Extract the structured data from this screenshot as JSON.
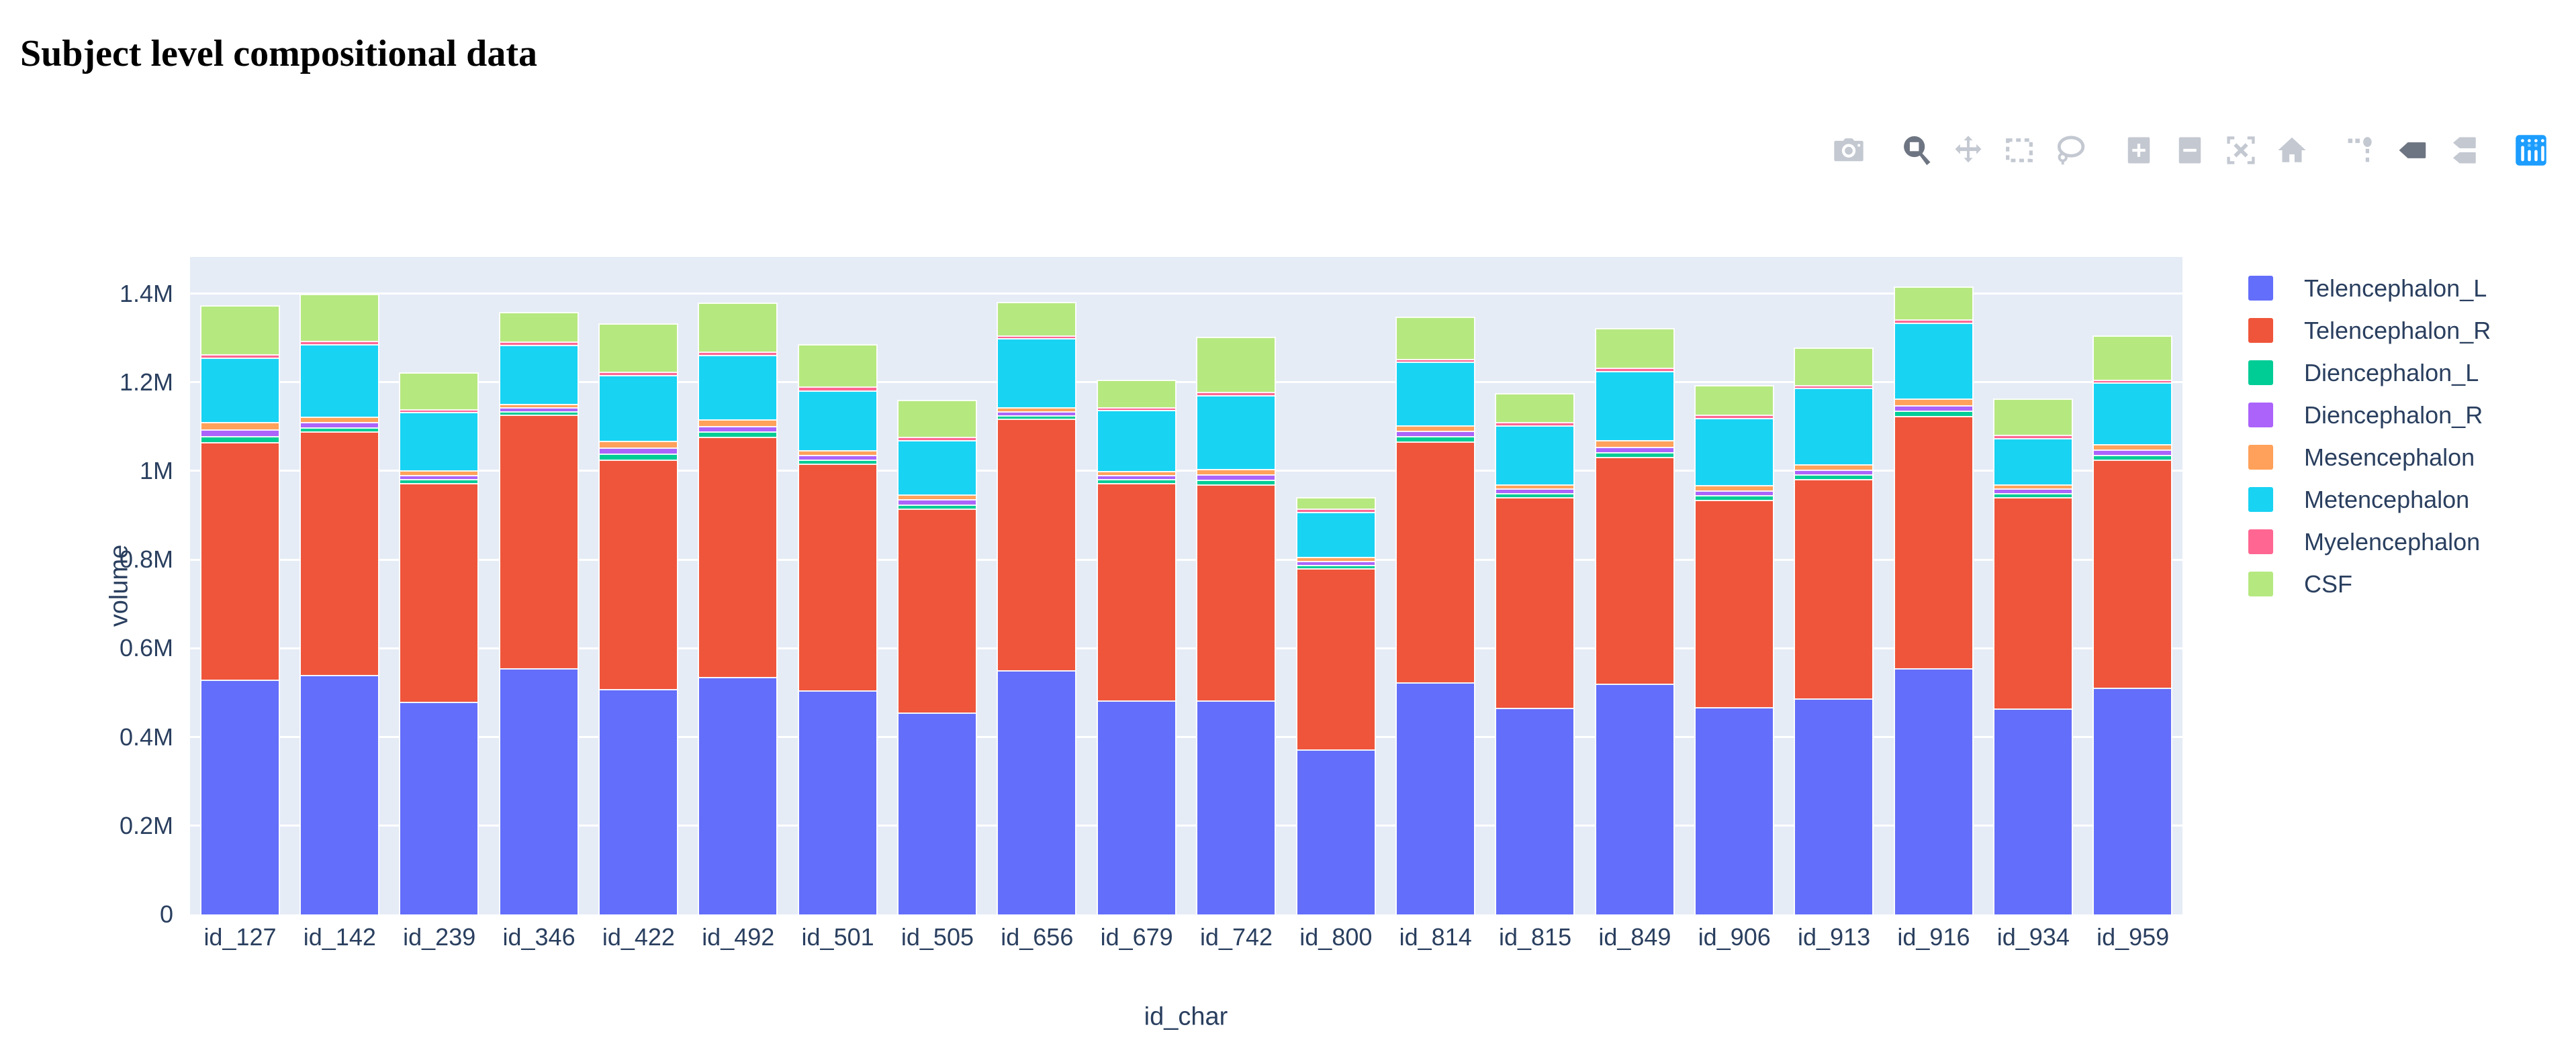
{
  "page": {
    "title": "Subject level compositional data"
  },
  "modebar": {
    "active_color": "#6e7582",
    "inactive_color": "#c3c8d1",
    "logo_color": "#1c9dff",
    "group_starts": [
      1,
      5,
      9,
      12
    ],
    "buttons": [
      {
        "icon": "camera",
        "name": "download-png",
        "active": false
      },
      {
        "icon": "zoom",
        "name": "zoom",
        "active": true
      },
      {
        "icon": "pan",
        "name": "pan",
        "active": false
      },
      {
        "icon": "box-select",
        "name": "box-select",
        "active": false
      },
      {
        "icon": "lasso",
        "name": "lasso-select",
        "active": false
      },
      {
        "icon": "zoom-in",
        "name": "zoom-in",
        "active": false
      },
      {
        "icon": "zoom-out",
        "name": "zoom-out",
        "active": false
      },
      {
        "icon": "autoscale",
        "name": "autoscale",
        "active": false
      },
      {
        "icon": "home",
        "name": "reset-axes",
        "active": false
      },
      {
        "icon": "spikelines",
        "name": "toggle-spikelines",
        "active": false
      },
      {
        "icon": "hover-closest",
        "name": "hover-closest",
        "active": true
      },
      {
        "icon": "hover-compare",
        "name": "hover-compare",
        "active": false
      },
      {
        "icon": "plotly-logo",
        "name": "plotly-logo",
        "active": false
      }
    ]
  },
  "chart_data": {
    "type": "bar",
    "stacked": true,
    "xlabel": "id_char",
    "ylabel": "volume",
    "plot_bgcolor": "#E5ECF6",
    "grid_color": "#ffffff",
    "font_color": "#2a3f5f",
    "grid": true,
    "legend_position": "right",
    "ylim": [
      0,
      1482500
    ],
    "yticks": [
      {
        "value": 0,
        "label": "0"
      },
      {
        "value": 200000,
        "label": "0.2M"
      },
      {
        "value": 400000,
        "label": "0.4M"
      },
      {
        "value": 600000,
        "label": "0.6M"
      },
      {
        "value": 800000,
        "label": "0.8M"
      },
      {
        "value": 1000000,
        "label": "1M"
      },
      {
        "value": 1200000,
        "label": "1.2M"
      },
      {
        "value": 1400000,
        "label": "1.4M"
      }
    ],
    "categories": [
      "id_127",
      "id_142",
      "id_239",
      "id_346",
      "id_422",
      "id_492",
      "id_501",
      "id_505",
      "id_656",
      "id_679",
      "id_742",
      "id_800",
      "id_814",
      "id_815",
      "id_849",
      "id_906",
      "id_913",
      "id_916",
      "id_934",
      "id_959"
    ],
    "series": [
      {
        "name": "Telencephalon_L",
        "color": "#636EFA",
        "values": [
          530000,
          540000,
          480000,
          555000,
          508000,
          535000,
          505000,
          455000,
          550000,
          482000,
          483000,
          372000,
          523000,
          466000,
          520000,
          467000,
          487000,
          555000,
          465000,
          512000
        ]
      },
      {
        "name": "Telencephalon_R",
        "color": "#EF553B",
        "values": [
          535000,
          549000,
          493000,
          572000,
          518000,
          542000,
          512000,
          460000,
          568000,
          491000,
          487000,
          408000,
          544000,
          475000,
          511000,
          468000,
          495000,
          569000,
          476000,
          514000
        ]
      },
      {
        "name": "Diencephalon_L",
        "color": "#00CC96",
        "values": [
          14000,
          10000,
          9000,
          8000,
          13000,
          12000,
          9000,
          10000,
          8000,
          9000,
          11000,
          8000,
          12000,
          9000,
          11000,
          10000,
          10000,
          12000,
          9000,
          11000
        ]
      },
      {
        "name": "Diencephalon_R",
        "color": "#AB63FA",
        "values": [
          15000,
          11000,
          9000,
          8000,
          14000,
          13000,
          10000,
          11000,
          9000,
          9000,
          11000,
          9000,
          12000,
          10000,
          13000,
          11000,
          11000,
          13000,
          10000,
          11000
        ]
      },
      {
        "name": "Mesencephalon",
        "color": "#FFA15A",
        "values": [
          16000,
          12000,
          10000,
          9000,
          15000,
          14000,
          11000,
          11000,
          9000,
          9000,
          12000,
          9000,
          12000,
          10000,
          14000,
          12000,
          12000,
          14000,
          10000,
          12000
        ]
      },
      {
        "name": "Metencephalon",
        "color": "#19D3F3",
        "values": [
          146000,
          164000,
          132000,
          133000,
          149000,
          146000,
          135000,
          123000,
          155000,
          137000,
          167000,
          102000,
          143000,
          133000,
          157000,
          151000,
          172000,
          171000,
          104000,
          140000
        ]
      },
      {
        "name": "Myelencephalon",
        "color": "#FF6692",
        "values": [
          8000,
          7000,
          6000,
          7000,
          7000,
          8000,
          8000,
          7000,
          7000,
          7000,
          8000,
          7000,
          7000,
          7000,
          7000,
          8000,
          6000,
          8000,
          7000,
          6000
        ]
      },
      {
        "name": "CSF",
        "color": "#B6E880",
        "values": [
          110000,
          107000,
          83000,
          67000,
          109000,
          109000,
          96000,
          83000,
          75000,
          62000,
          124000,
          26000,
          95000,
          65000,
          89000,
          67000,
          86000,
          74000,
          82000,
          100000
        ]
      }
    ]
  }
}
